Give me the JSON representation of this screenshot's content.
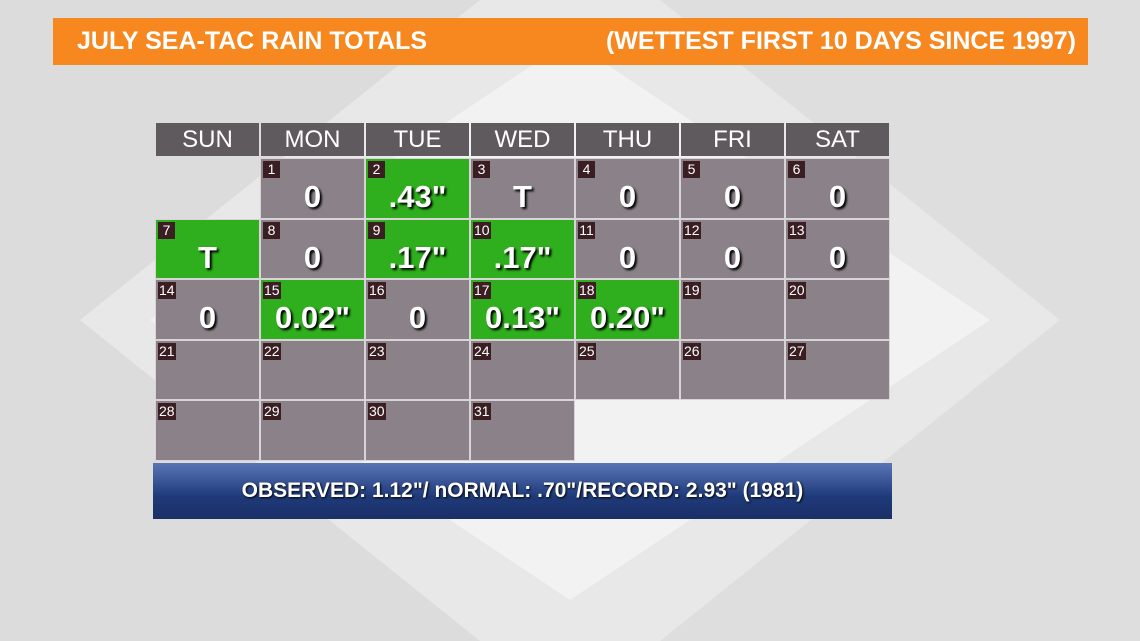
{
  "header": {
    "title": "JULY SEA-TAC RAIN TOTALS",
    "subtitle": "(WETTEST FIRST 10 DAYS SINCE 1997)",
    "color": "#f7871f"
  },
  "calendar": {
    "weekdays": [
      "SUN",
      "MON",
      "TUE",
      "WED",
      "THU",
      "FRI",
      "SAT"
    ],
    "days": [
      {
        "date": 1,
        "value": "0",
        "color": "#8a8288"
      },
      {
        "date": 2,
        "value": ".43\"",
        "color": "#2fae1e"
      },
      {
        "date": 3,
        "value": "T",
        "color": "#8a8288"
      },
      {
        "date": 4,
        "value": "0",
        "color": "#8a8288"
      },
      {
        "date": 5,
        "value": "0",
        "color": "#8a8288"
      },
      {
        "date": 6,
        "value": "0",
        "color": "#8a8288"
      },
      {
        "date": 7,
        "value": "T",
        "color": "#2fae1e"
      },
      {
        "date": 8,
        "value": "0",
        "color": "#8a8288"
      },
      {
        "date": 9,
        "value": ".17\"",
        "color": "#2fae1e"
      },
      {
        "date": 10,
        "value": ".17\"",
        "color": "#2fae1e"
      },
      {
        "date": 11,
        "value": "0",
        "color": "#8a8288"
      },
      {
        "date": 12,
        "value": "0",
        "color": "#8a8288"
      },
      {
        "date": 13,
        "value": "0",
        "color": "#8a8288"
      },
      {
        "date": 14,
        "value": "0",
        "color": "#8a8288"
      },
      {
        "date": 15,
        "value": "0.02\"",
        "color": "#2fae1e"
      },
      {
        "date": 16,
        "value": "0",
        "color": "#8a8288"
      },
      {
        "date": 17,
        "value": "0.13\"",
        "color": "#2fae1e"
      },
      {
        "date": 18,
        "value": "0.20\"",
        "color": "#2fae1e"
      },
      {
        "date": 19,
        "color": "#8a8288"
      },
      {
        "date": 20,
        "color": "#8a8288"
      },
      {
        "date": 21,
        "color": "#8a8288"
      },
      {
        "date": 22,
        "color": "#8a8288"
      },
      {
        "date": 23,
        "color": "#8a8288"
      },
      {
        "date": 24,
        "color": "#8a8288"
      },
      {
        "date": 25,
        "color": "#8a8288"
      },
      {
        "date": 26,
        "color": "#8a8288"
      },
      {
        "date": 27,
        "color": "#8a8288"
      },
      {
        "date": 28,
        "color": "#8a8288"
      },
      {
        "date": 29,
        "color": "#8a8288"
      },
      {
        "date": 30,
        "color": "#8a8288"
      },
      {
        "date": 31,
        "color": "#8a8288"
      }
    ]
  },
  "footer": {
    "text": "OBSERVED: 1.12\"/ nORMAL: .70\"/RECORD: 2.93\" (1981)"
  }
}
